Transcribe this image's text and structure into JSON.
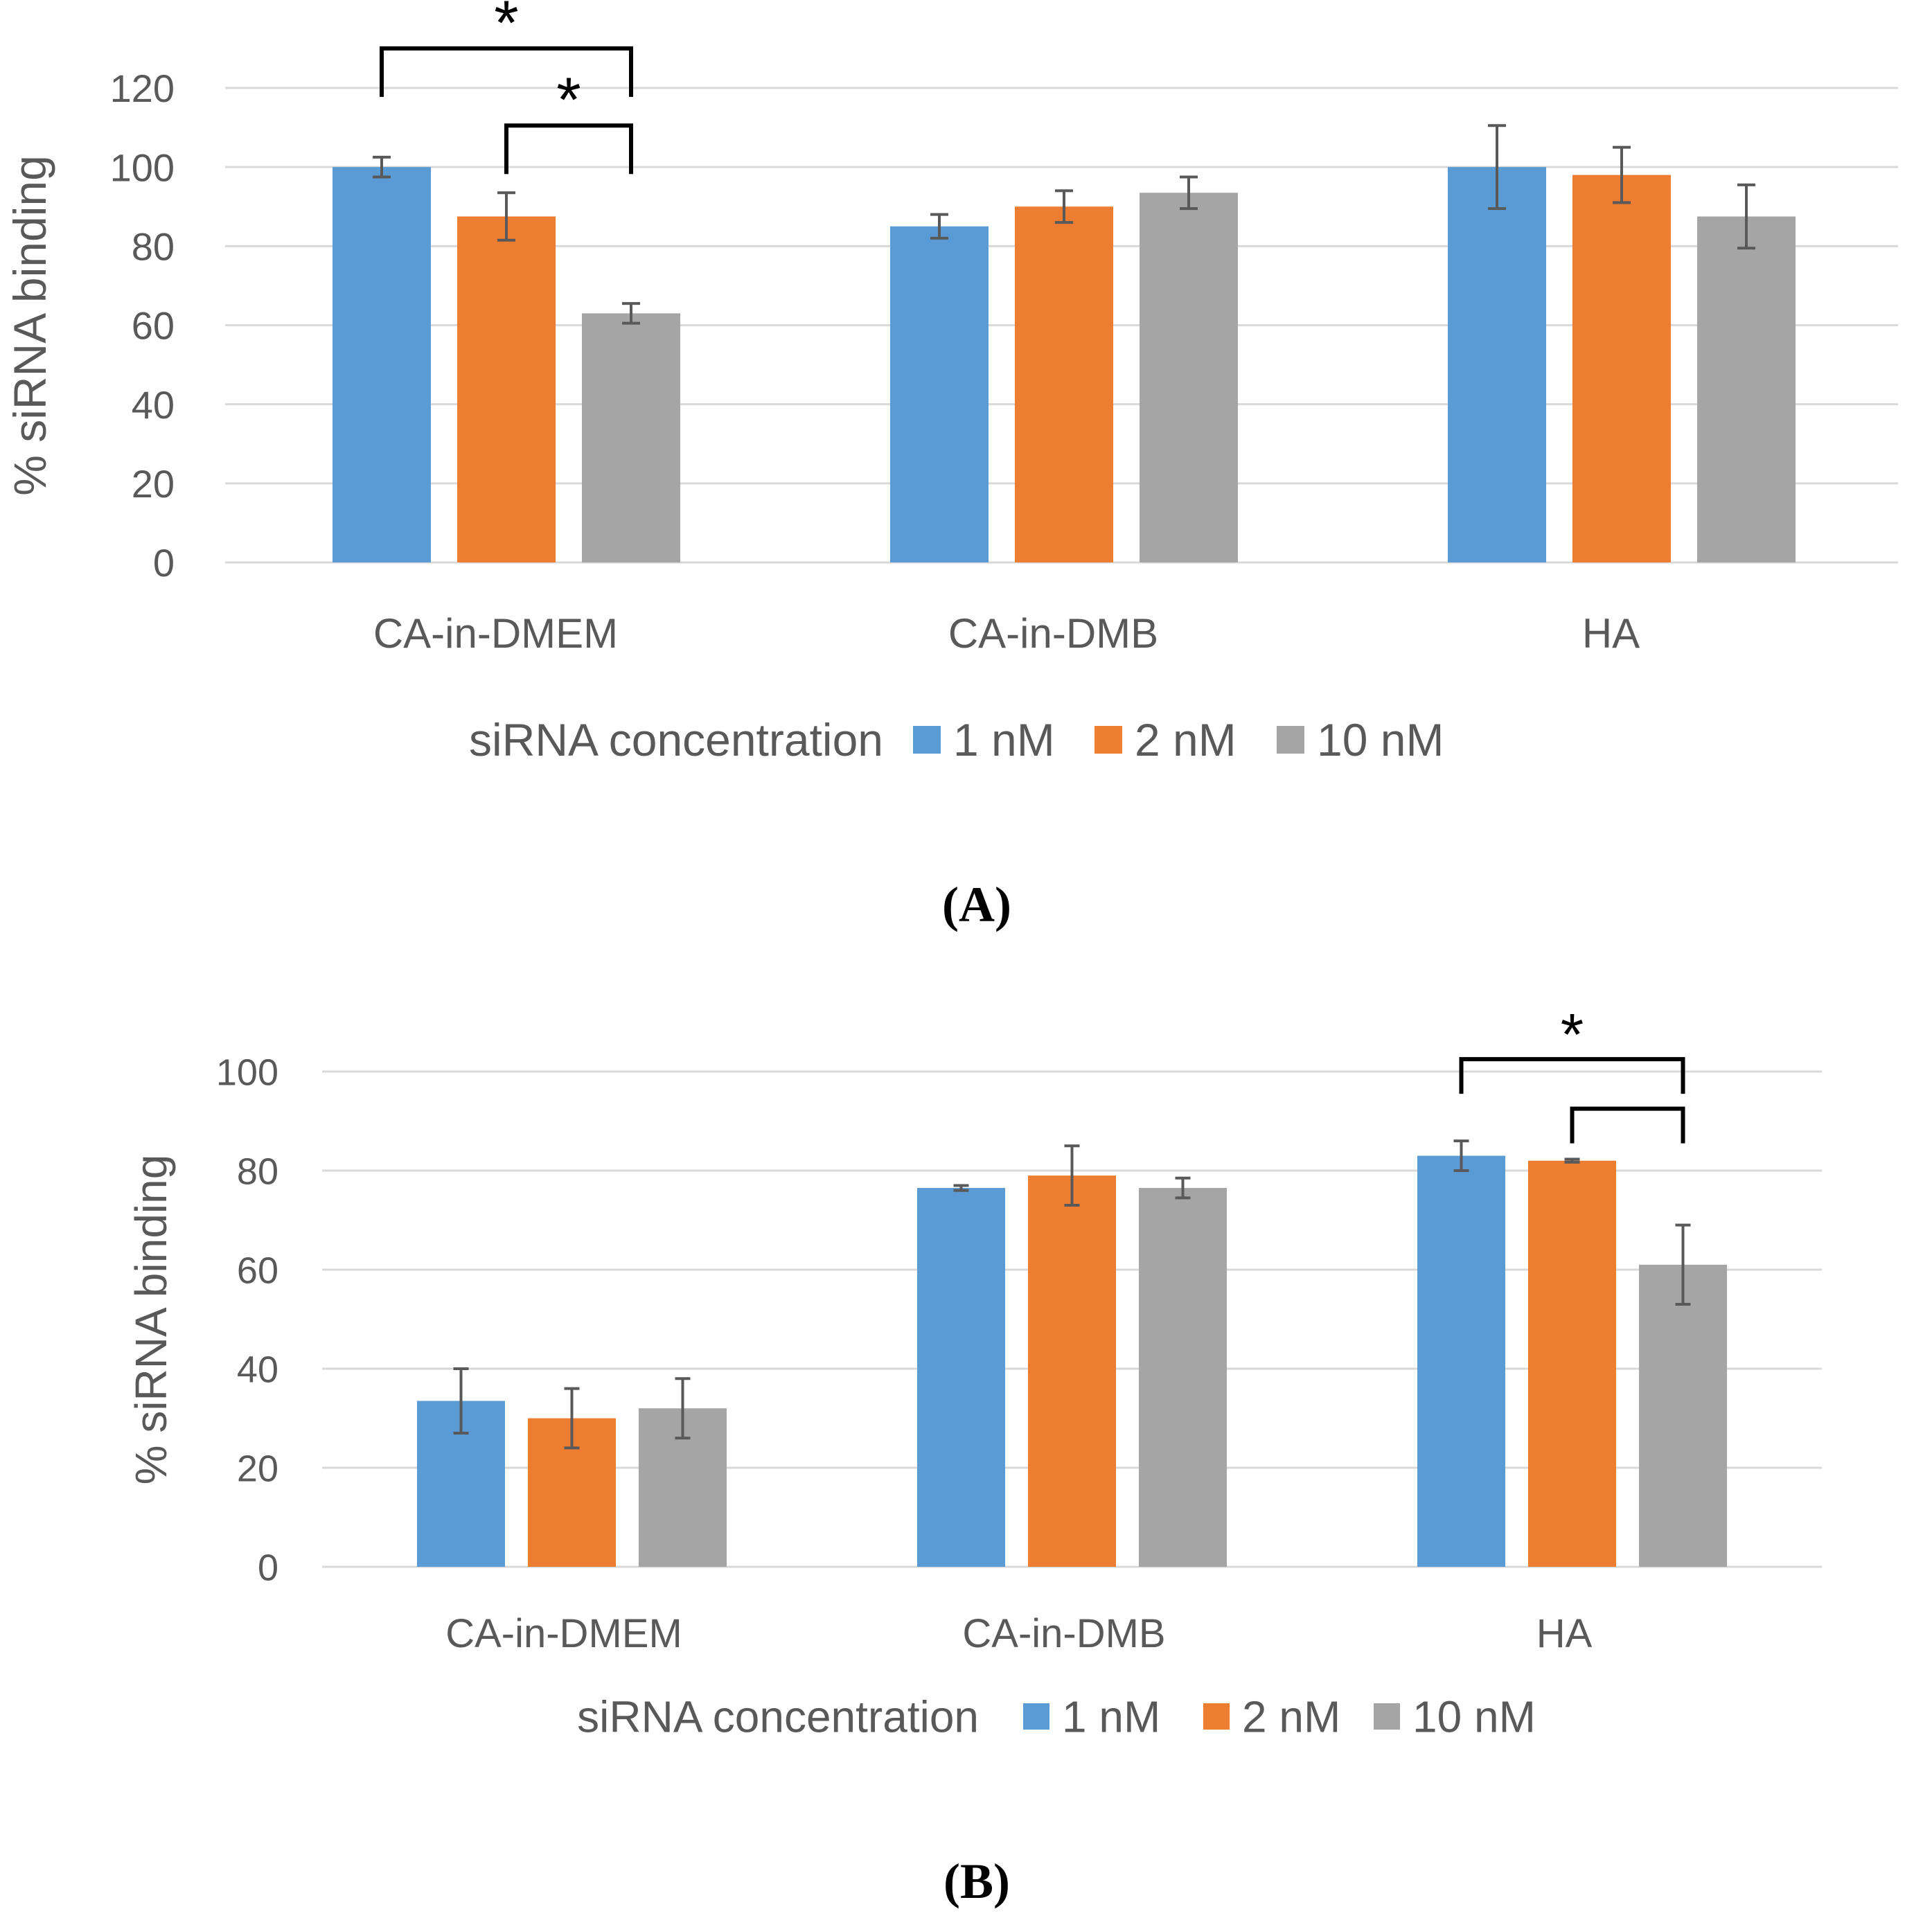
{
  "figure": {
    "panels": [
      "(A)",
      "(B)"
    ]
  },
  "colors": {
    "series": [
      "#5B9BD5",
      "#ED7D31",
      "#A5A5A5"
    ],
    "grid": "#D9D9D9",
    "text": "#595959",
    "errorbar": "#595959",
    "bracket": "#000000"
  },
  "chart_data": [
    {
      "type": "bar",
      "panel": "(A)",
      "title": "",
      "xlabel": "",
      "ylabel": "% siRNA binding",
      "ylim": [
        0,
        120
      ],
      "yticks": [
        0,
        20,
        40,
        60,
        80,
        100,
        120
      ],
      "grid": true,
      "categories": [
        "CA-in-DMEM",
        "CA-in-DMB",
        "HA"
      ],
      "legend_title": "siRNA concentration",
      "legend_position": "bottom",
      "series": [
        {
          "name": "1 nM",
          "values": [
            100,
            85,
            100
          ],
          "errors": [
            2.5,
            3,
            10.5
          ]
        },
        {
          "name": "2 nM",
          "values": [
            87.5,
            90,
            98
          ],
          "errors": [
            6,
            4,
            7
          ]
        },
        {
          "name": "10 nM",
          "values": [
            63,
            93.5,
            87.5
          ],
          "errors": [
            2.5,
            4,
            8
          ]
        }
      ],
      "significance": [
        {
          "from": [
            0,
            0
          ],
          "to": [
            0,
            2
          ],
          "level": 130,
          "label": "*"
        },
        {
          "from": [
            0,
            1
          ],
          "to": [
            0,
            2
          ],
          "level": 110.5,
          "label": "*"
        }
      ]
    },
    {
      "type": "bar",
      "panel": "(B)",
      "title": "",
      "xlabel": "",
      "ylabel": "% siRNA binding",
      "ylim": [
        0,
        100
      ],
      "yticks": [
        0,
        20,
        40,
        60,
        80,
        100
      ],
      "grid": true,
      "categories": [
        "CA-in-DMEM",
        "CA-in-DMB",
        "HA"
      ],
      "legend_title": "siRNA concentration",
      "legend_position": "bottom",
      "series": [
        {
          "name": "1 nM",
          "values": [
            33.5,
            76.5,
            83
          ],
          "errors": [
            6.5,
            0.5,
            3
          ]
        },
        {
          "name": "2 nM",
          "values": [
            30,
            79,
            82
          ],
          "errors": [
            6,
            6,
            0.3
          ]
        },
        {
          "name": "10 nM",
          "values": [
            32,
            76.5,
            61
          ],
          "errors": [
            6,
            2,
            8
          ]
        }
      ],
      "significance": [
        {
          "from": [
            2,
            0
          ],
          "to": [
            2,
            2
          ],
          "level": 102.5,
          "label": "*"
        },
        {
          "from": [
            2,
            1
          ],
          "to": [
            2,
            2
          ],
          "level": 92.5,
          "label": ""
        }
      ]
    }
  ]
}
